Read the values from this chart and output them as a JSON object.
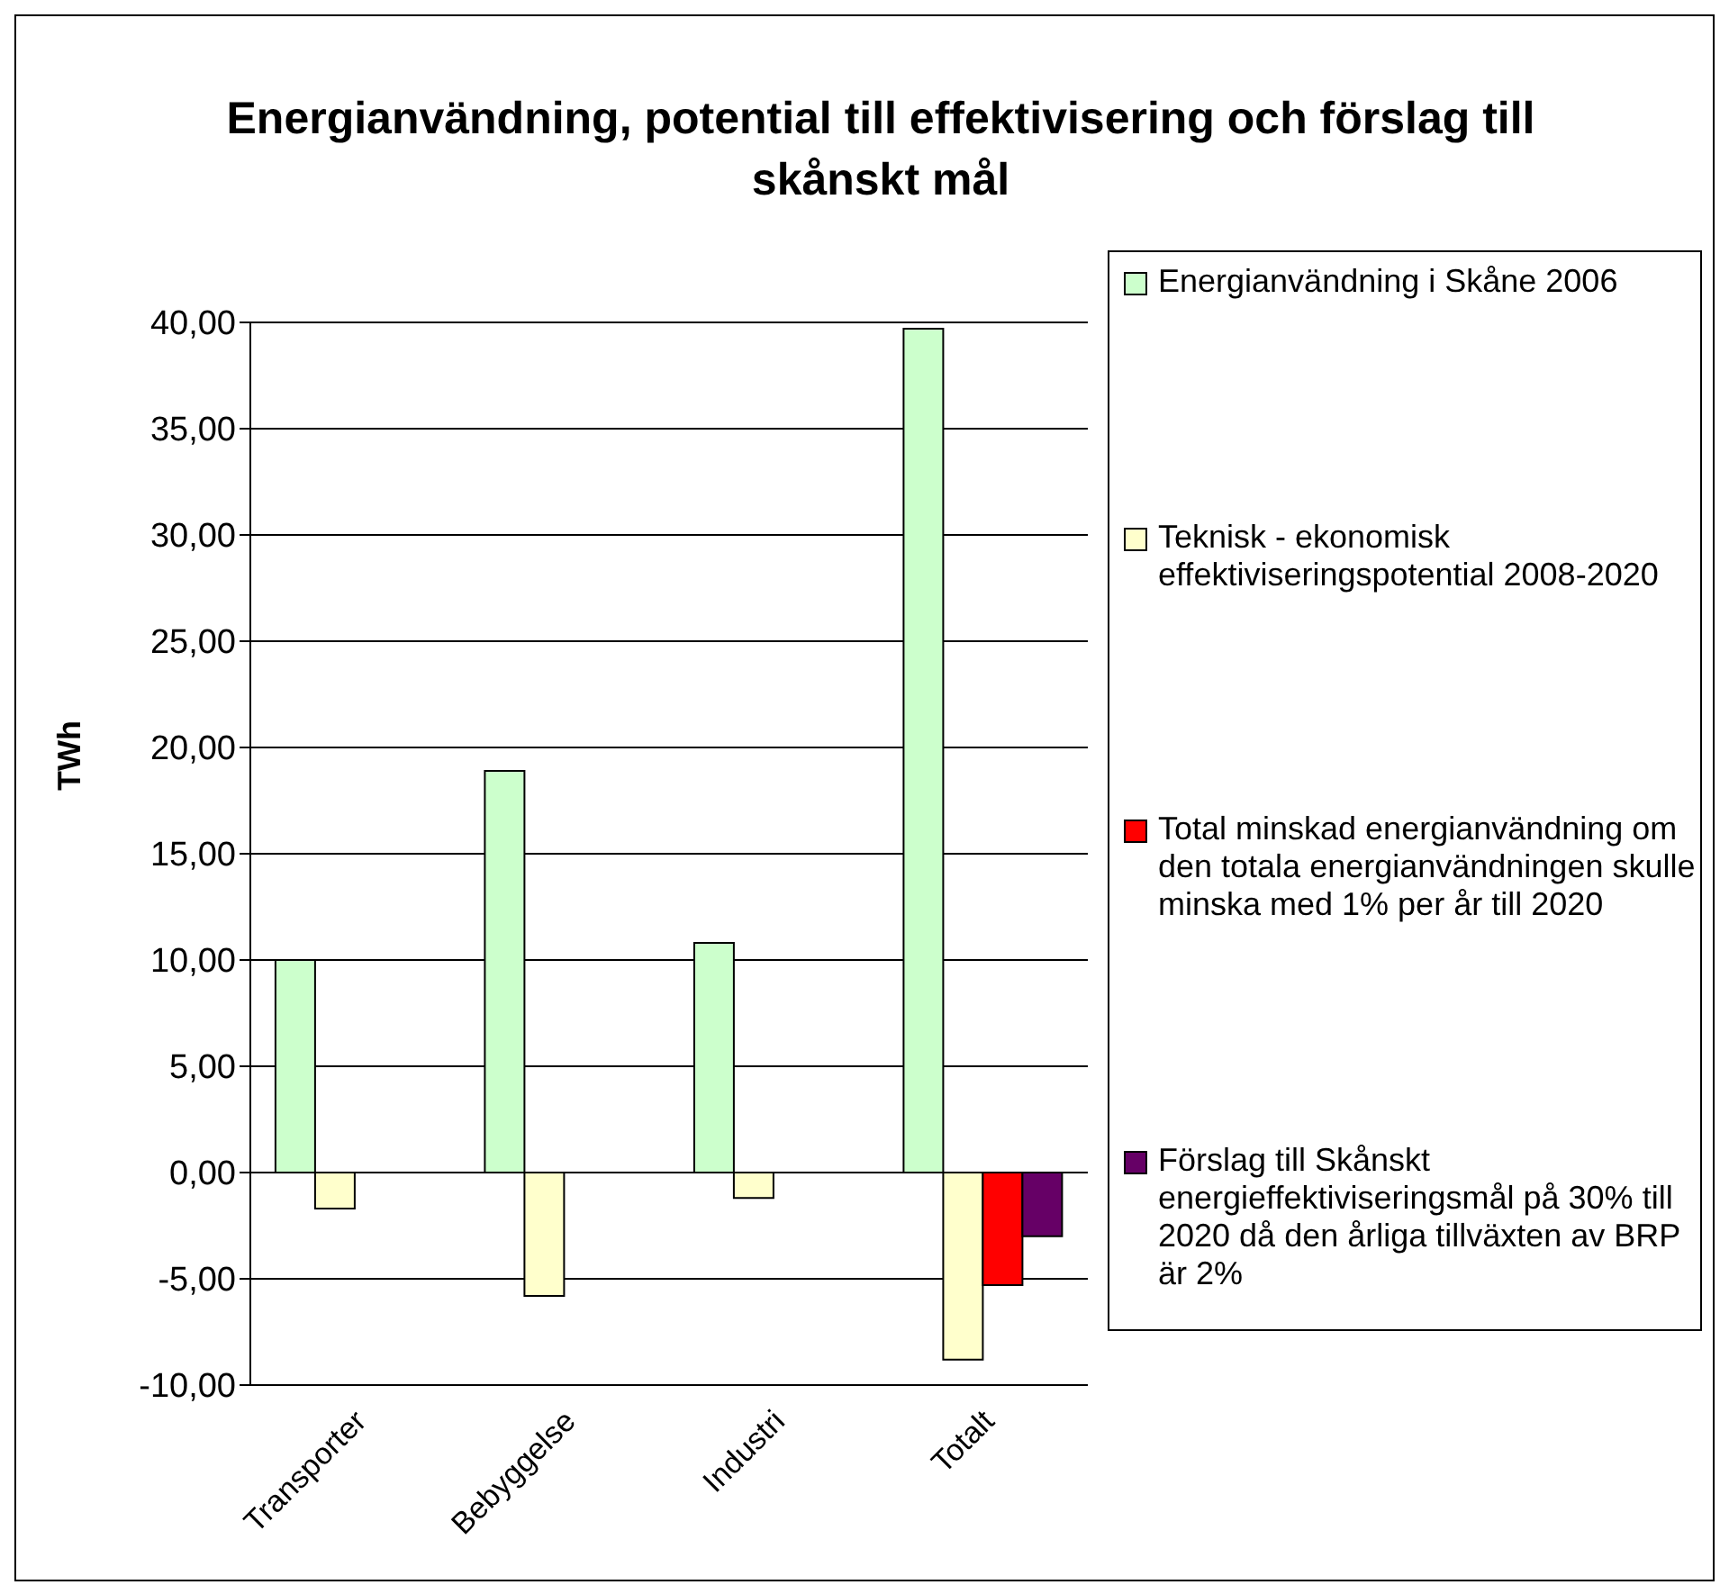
{
  "chart_data": {
    "type": "bar",
    "title": "Energianvändning, potential till effektivisering och förslag till skånskt mål",
    "ylabel": "TWh",
    "categories": [
      "Transporter",
      "Bebyggelse",
      "Industri",
      "Totalt"
    ],
    "series": [
      {
        "name": "Energianvändning i Skåne 2006",
        "color": "#ccffcc",
        "values": [
          10.0,
          18.9,
          10.8,
          39.7
        ]
      },
      {
        "name": "Teknisk - ekonomisk effektiviseringspotential 2008-2020",
        "color": "#ffffcc",
        "values": [
          -1.7,
          -5.8,
          -1.2,
          -8.8
        ]
      },
      {
        "name": "Total minskad energianvändning om den totala energianvändningen skulle minska med 1% per år till 2020",
        "color": "#ff0000",
        "values": [
          null,
          null,
          null,
          -5.3
        ]
      },
      {
        "name": "Förslag till Skånskt energieffektiviseringsmål på 30% till 2020 då den årliga tillväxten av BRP är 2%",
        "color": "#660066",
        "values": [
          null,
          null,
          null,
          -3.0
        ]
      }
    ],
    "ylim": [
      -10,
      40
    ],
    "yticks": [
      {
        "value": -10,
        "label": "-10,00"
      },
      {
        "value": -5,
        "label": "-5,00"
      },
      {
        "value": 0,
        "label": "0,00"
      },
      {
        "value": 5,
        "label": "5,00"
      },
      {
        "value": 10,
        "label": "10,00"
      },
      {
        "value": 15,
        "label": "15,00"
      },
      {
        "value": 20,
        "label": "20,00"
      },
      {
        "value": 25,
        "label": "25,00"
      },
      {
        "value": 30,
        "label": "30,00"
      },
      {
        "value": 35,
        "label": "35,00"
      },
      {
        "value": 40,
        "label": "40,00"
      }
    ],
    "grid": "y",
    "legend": "right"
  }
}
